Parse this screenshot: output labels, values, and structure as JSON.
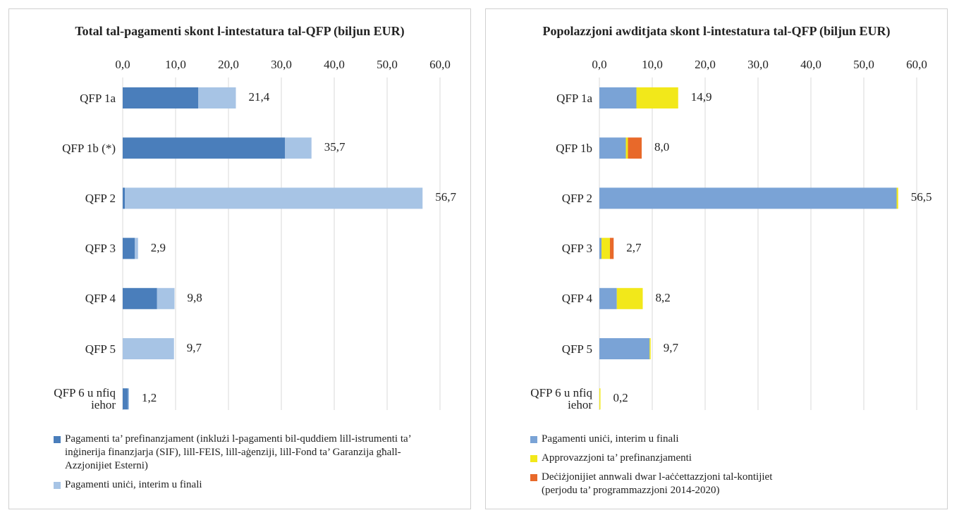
{
  "chart_data": [
    {
      "type": "stacked-barh",
      "title": "Total tal-pagamenti skont l-intestatura tal-QFP (biljun EUR)",
      "categories": [
        "QFP 1a",
        "QFP 1b (*)",
        "QFP 2",
        "QFP 3",
        "QFP 4",
        "QFP 5",
        "QFP 6 u nfiq iehor"
      ],
      "series": [
        {
          "name": "Pagamenti ta’ prefinanzjament (inklużi l-pagamenti bil-quddiem lill-istrumenti ta’ inġinerija finanzjarja (SIF), lill-FEIS, lill-aġenziji, lill-Fond ta’ Garanzija għall-Azzjonijiet Esterni)",
          "color": "#4a7ebb",
          "values": [
            14.3,
            30.7,
            0.4,
            2.3,
            6.5,
            0,
            1.0
          ]
        },
        {
          "name": "Pagamenti uniċi, interim u finali",
          "color": "#a7c4e5",
          "values": [
            7.1,
            5.0,
            56.3,
            0.6,
            3.3,
            9.7,
            0.2
          ]
        }
      ],
      "totals": [
        21.4,
        35.7,
        56.7,
        2.9,
        9.8,
        9.7,
        1.2
      ],
      "value_labels": [
        "21,4",
        "35,7",
        "56,7",
        "2,9",
        "9,8",
        "9,7",
        "1,2"
      ],
      "xlim": [
        0,
        60
      ],
      "xticks": [
        {
          "value": 0,
          "label": "0,0"
        },
        {
          "value": 10,
          "label": "10,0"
        },
        {
          "value": 20,
          "label": "20,0"
        },
        {
          "value": 30,
          "label": "30,0"
        },
        {
          "value": 40,
          "label": "40,0"
        },
        {
          "value": 50,
          "label": "50,0"
        },
        {
          "value": 60,
          "label": "60,0"
        }
      ],
      "grid": true
    },
    {
      "type": "stacked-barh",
      "title": "Popolazzjoni awditjata skont l-intestatura tal-QFP (biljun EUR)",
      "categories": [
        "QFP 1a",
        "QFP 1b",
        "QFP 2",
        "QFP 3",
        "QFP 4",
        "QFP 5",
        "QFP 6 u nfiq iehor"
      ],
      "series": [
        {
          "name": "Pagamenti uniċi, interim u finali",
          "color": "#7aa3d6",
          "values": [
            7.0,
            5.0,
            56.2,
            0.4,
            3.3,
            9.5,
            0
          ]
        },
        {
          "name": "Approvazzjoni ta’ prefinanzjamenti",
          "color": "#f2e81a",
          "values": [
            7.9,
            0.4,
            0.3,
            1.6,
            4.9,
            0.2,
            0.2
          ]
        },
        {
          "name": "Deċiżjonijiet annwali dwar l-aċċettazzjoni tal-kontijiet (perjodu ta’ programmazzjoni 2014-2020)",
          "color": "#e8692a",
          "values": [
            0,
            2.6,
            0,
            0.7,
            0,
            0,
            0
          ]
        }
      ],
      "totals": [
        14.9,
        8.0,
        56.5,
        2.7,
        8.2,
        9.7,
        0.2
      ],
      "value_labels": [
        "14,9",
        "8,0",
        "56,5",
        "2,7",
        "8,2",
        "9,7",
        "0,2"
      ],
      "xlim": [
        0,
        60
      ],
      "xticks": [
        {
          "value": 0,
          "label": "0,0"
        },
        {
          "value": 10,
          "label": "10,0"
        },
        {
          "value": 20,
          "label": "20,0"
        },
        {
          "value": 30,
          "label": "30,0"
        },
        {
          "value": 40,
          "label": "40,0"
        },
        {
          "value": 50,
          "label": "50,0"
        },
        {
          "value": 60,
          "label": "60,0"
        }
      ],
      "grid": true
    }
  ]
}
